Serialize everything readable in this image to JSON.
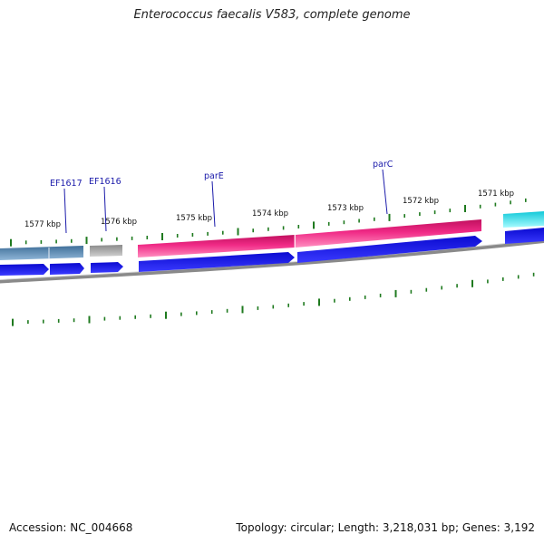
{
  "title": "Enterococcus faecalis V583, complete genome",
  "footer": {
    "accession": "Accession: NC_004668",
    "stats": "Topology: circular; Length: 3,218,031 bp; Genes: 3,192"
  },
  "colors": {
    "backbone": "#777777",
    "tick": "#1f7a1f",
    "gene_label": "#1a1aaa",
    "cds_strand": "#1010ee",
    "parE_parC": "#e8207a",
    "ef1617": "#4a7fae",
    "ef1616": "#a9a9a9",
    "edge_gene": "#19e0e8"
  },
  "kbp_labels": [
    {
      "label": "1577 kbp",
      "kbp": 1577
    },
    {
      "label": "1576 kbp",
      "kbp": 1576
    },
    {
      "label": "1575 kbp",
      "kbp": 1575
    },
    {
      "label": "1574 kbp",
      "kbp": 1574
    },
    {
      "label": "1573 kbp",
      "kbp": 1573
    },
    {
      "label": "1572 kbp",
      "kbp": 1572
    },
    {
      "label": "1571 kbp",
      "kbp": 1571
    }
  ],
  "gene_labels": [
    {
      "name": "EF1617"
    },
    {
      "name": "EF1616"
    },
    {
      "name": "parE"
    },
    {
      "name": "parC"
    }
  ]
}
